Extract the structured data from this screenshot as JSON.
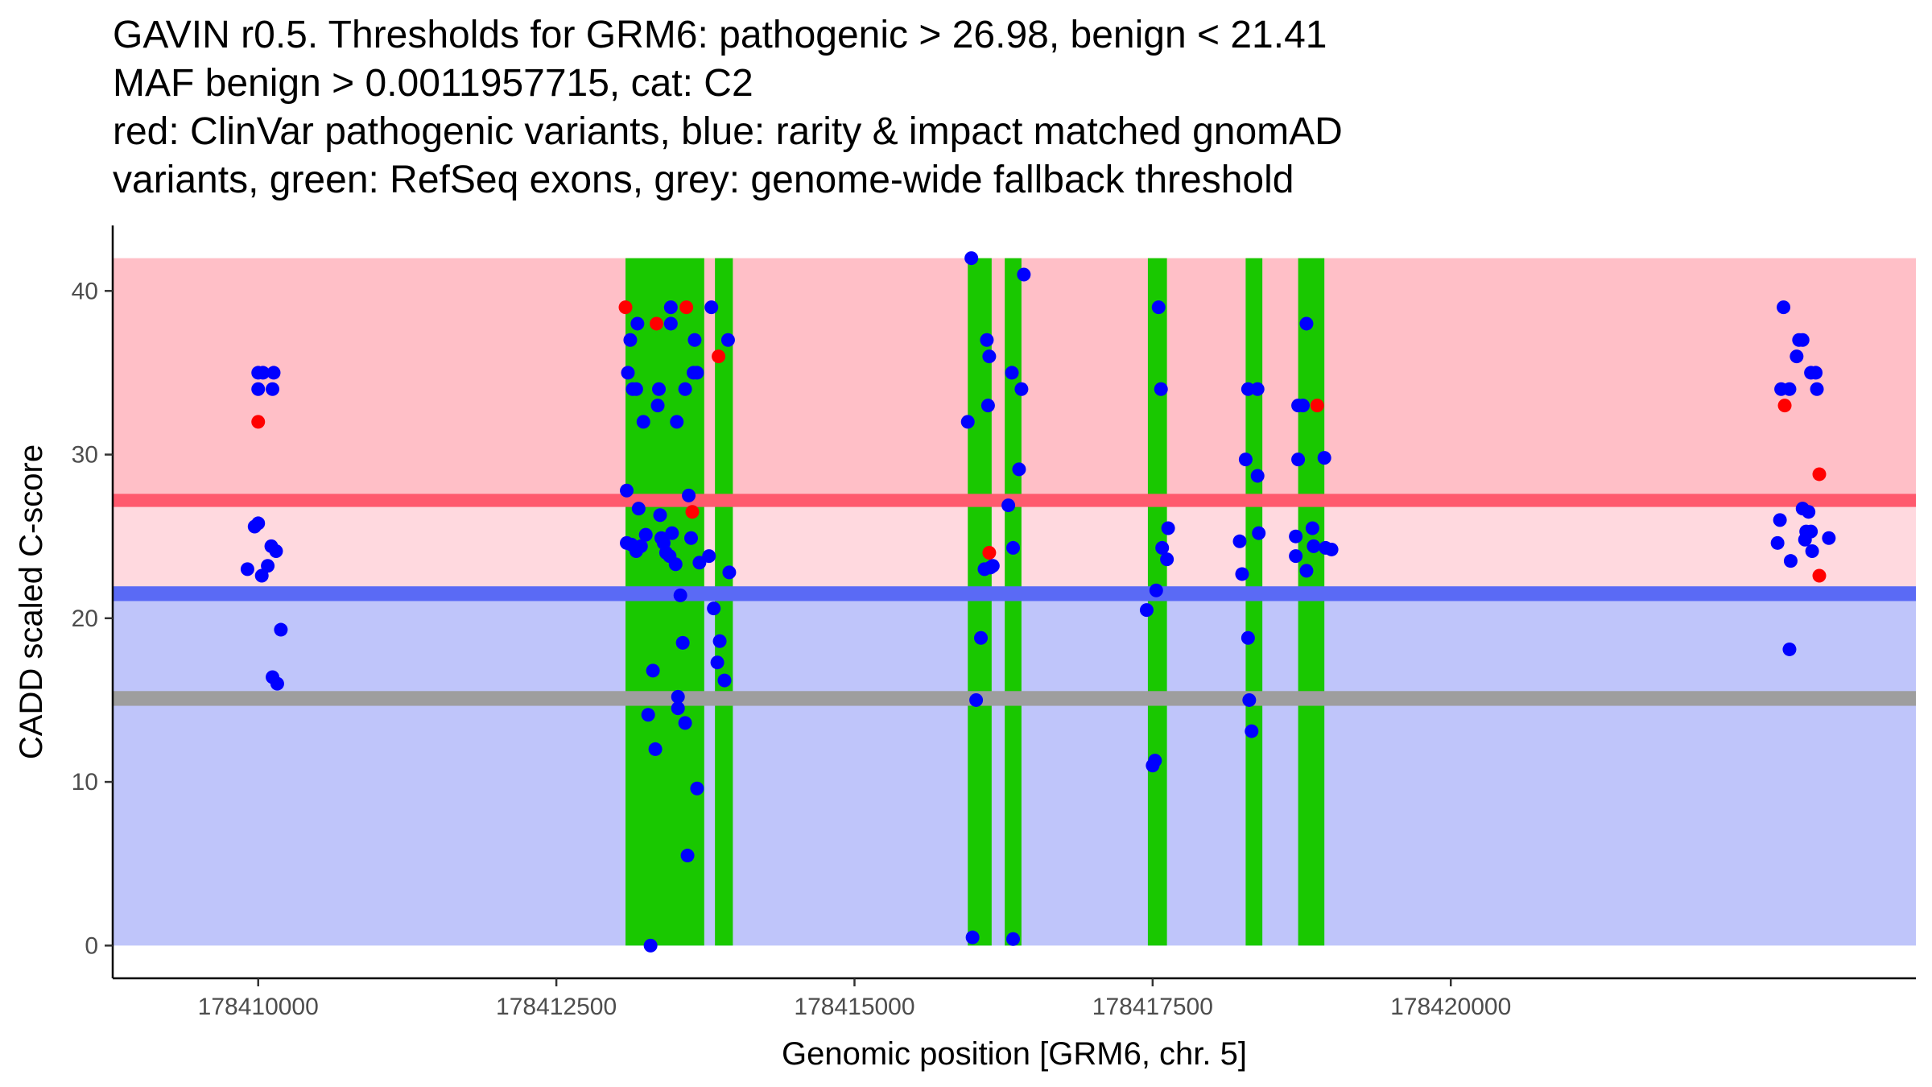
{
  "chart_data": {
    "type": "scatter",
    "title_lines": [
      "GAVIN r0.5. Thresholds for GRM6: pathogenic > 26.98, benign < 21.41",
      "MAF benign > 0.0011957715, cat: C2",
      "red: ClinVar pathogenic variants, blue: rarity & impact matched gnomAD",
      "variants, green: RefSeq exons, grey: genome-wide fallback threshold"
    ],
    "xlabel": "Genomic position [GRM6, chr. 5]",
    "ylabel": "CADD scaled C-score",
    "xlim": [
      178408780,
      178423900
    ],
    "ylim": [
      -2,
      44
    ],
    "x_ticks": [
      178410000,
      178412500,
      178415000,
      178417500,
      178420000
    ],
    "x_tick_labels": [
      "178410000",
      "178412500",
      "178415000",
      "178417500",
      "178420000"
    ],
    "y_ticks": [
      0,
      10,
      20,
      30,
      40
    ],
    "y_tick_labels": [
      "0",
      "10",
      "20",
      "30",
      "40"
    ],
    "thresholds": {
      "pathogenic": 26.98,
      "benign": 21.41,
      "fallback": 15.0,
      "maf_benign": 0.0011957715,
      "category": "C2"
    },
    "bands": [
      {
        "name": "pathogenic-zone",
        "from": 27.2,
        "to": 42,
        "color": "#ffbfc7"
      },
      {
        "name": "uncertain-zone",
        "from": 21.5,
        "to": 27.2,
        "color": "#ffd9df"
      },
      {
        "name": "benign-zone",
        "from": 0,
        "to": 21.5,
        "color": "#bfc5fa"
      }
    ],
    "threshold_lines": [
      {
        "name": "pathogenic-threshold",
        "y": 27.2,
        "color": "#ff5a6e",
        "thickness": 0.8
      },
      {
        "name": "benign-threshold",
        "y": 21.5,
        "color": "#5a6af5",
        "thickness": 0.9
      },
      {
        "name": "fallback-threshold",
        "y": 15.1,
        "color": "#9e9e9e",
        "thickness": 0.9
      }
    ],
    "exons": [
      {
        "start": 178413080,
        "end": 178413740
      },
      {
        "start": 178413830,
        "end": 178413980
      },
      {
        "start": 178415950,
        "end": 178416150
      },
      {
        "start": 178416260,
        "end": 178416400
      },
      {
        "start": 178417460,
        "end": 178417620
      },
      {
        "start": 178418280,
        "end": 178418420
      },
      {
        "start": 178418720,
        "end": 178418940
      }
    ],
    "series": [
      {
        "name": "ClinVar pathogenic variants",
        "color": "#ff0000",
        "points": [
          [
            178410000,
            32
          ],
          [
            178413080,
            39
          ],
          [
            178413340,
            38
          ],
          [
            178413590,
            39
          ],
          [
            178413860,
            36
          ],
          [
            178413640,
            26.5
          ],
          [
            178416130,
            24
          ],
          [
            178418880,
            33
          ],
          [
            178422800,
            33
          ],
          [
            178423090,
            28.8
          ],
          [
            178423090,
            22.6
          ]
        ]
      },
      {
        "name": "rarity & impact matched gnomAD variants",
        "color": "#0000ff",
        "points": [
          [
            178410000,
            35
          ],
          [
            178410040,
            35
          ],
          [
            178410130,
            35
          ],
          [
            178410000,
            34
          ],
          [
            178410120,
            34
          ],
          [
            178409970,
            25.6
          ],
          [
            178410000,
            25.8
          ],
          [
            178410110,
            24.4
          ],
          [
            178410150,
            24.1
          ],
          [
            178409910,
            23
          ],
          [
            178410080,
            23.2
          ],
          [
            178410030,
            22.6
          ],
          [
            178410190,
            19.3
          ],
          [
            178410120,
            16.4
          ],
          [
            178410160,
            16
          ],
          [
            178413090,
            27.8
          ],
          [
            178413100,
            35
          ],
          [
            178413120,
            37
          ],
          [
            178413140,
            34
          ],
          [
            178413170,
            34
          ],
          [
            178413180,
            38
          ],
          [
            178413090,
            24.6
          ],
          [
            178413130,
            24.5
          ],
          [
            178413170,
            24.1
          ],
          [
            178413190,
            26.7
          ],
          [
            178413210,
            24.4
          ],
          [
            178413230,
            32
          ],
          [
            178413250,
            25.1
          ],
          [
            178413270,
            14.1
          ],
          [
            178413310,
            16.8
          ],
          [
            178413330,
            12
          ],
          [
            178413290,
            0
          ],
          [
            178413360,
            34
          ],
          [
            178413350,
            33
          ],
          [
            178413370,
            26.3
          ],
          [
            178413380,
            24.9
          ],
          [
            178413400,
            24.6
          ],
          [
            178413420,
            24
          ],
          [
            178413450,
            23.8
          ],
          [
            178413470,
            25.2
          ],
          [
            178413460,
            38
          ],
          [
            178413460,
            39
          ],
          [
            178413510,
            32
          ],
          [
            178413500,
            23.3
          ],
          [
            178413520,
            14.5
          ],
          [
            178413520,
            15.2
          ],
          [
            178413540,
            21.4
          ],
          [
            178413560,
            18.5
          ],
          [
            178413580,
            34
          ],
          [
            178413580,
            13.6
          ],
          [
            178413600,
            5.5
          ],
          [
            178413610,
            27.5
          ],
          [
            178413630,
            24.9
          ],
          [
            178413650,
            35
          ],
          [
            178413660,
            37
          ],
          [
            178413680,
            35
          ],
          [
            178413680,
            9.6
          ],
          [
            178413700,
            23.4
          ],
          [
            178413780,
            23.8
          ],
          [
            178413800,
            39
          ],
          [
            178413820,
            20.6
          ],
          [
            178413850,
            17.3
          ],
          [
            178413870,
            18.6
          ],
          [
            178413910,
            16.2
          ],
          [
            178413940,
            37
          ],
          [
            178413950,
            22.8
          ],
          [
            178415950,
            32
          ],
          [
            178415980,
            42
          ],
          [
            178415990,
            0.5
          ],
          [
            178416020,
            15
          ],
          [
            178416060,
            18.8
          ],
          [
            178416090,
            23
          ],
          [
            178416110,
            37
          ],
          [
            178416120,
            33
          ],
          [
            178416130,
            36
          ],
          [
            178416140,
            23.1
          ],
          [
            178416160,
            23.2
          ],
          [
            178416290,
            26.9
          ],
          [
            178416320,
            35
          ],
          [
            178416330,
            24.3
          ],
          [
            178416330,
            0.4
          ],
          [
            178416380,
            29.1
          ],
          [
            178416400,
            34
          ],
          [
            178416420,
            41
          ],
          [
            178417450,
            20.5
          ],
          [
            178417500,
            11
          ],
          [
            178417520,
            11.3
          ],
          [
            178417530,
            21.7
          ],
          [
            178417550,
            39
          ],
          [
            178417570,
            34
          ],
          [
            178417580,
            24.3
          ],
          [
            178417620,
            23.6
          ],
          [
            178417630,
            25.5
          ],
          [
            178418230,
            24.7
          ],
          [
            178418250,
            22.7
          ],
          [
            178418280,
            29.7
          ],
          [
            178418300,
            34
          ],
          [
            178418300,
            18.8
          ],
          [
            178418310,
            15
          ],
          [
            178418330,
            13.1
          ],
          [
            178418380,
            34
          ],
          [
            178418380,
            28.7
          ],
          [
            178418390,
            25.2
          ],
          [
            178418700,
            25
          ],
          [
            178418700,
            23.8
          ],
          [
            178418720,
            33
          ],
          [
            178418720,
            29.7
          ],
          [
            178418760,
            33
          ],
          [
            178418790,
            38
          ],
          [
            178418790,
            22.9
          ],
          [
            178418840,
            25.5
          ],
          [
            178418850,
            24.4
          ],
          [
            178418940,
            29.8
          ],
          [
            178418950,
            24.3
          ],
          [
            178419000,
            24.2
          ],
          [
            178422740,
            24.6
          ],
          [
            178422760,
            26
          ],
          [
            178422770,
            34
          ],
          [
            178422790,
            39
          ],
          [
            178422840,
            34
          ],
          [
            178422840,
            18.1
          ],
          [
            178422850,
            23.5
          ],
          [
            178422900,
            36
          ],
          [
            178422920,
            37
          ],
          [
            178422950,
            37
          ],
          [
            178422950,
            26.7
          ],
          [
            178422970,
            24.8
          ],
          [
            178422980,
            25.3
          ],
          [
            178423000,
            26.5
          ],
          [
            178423020,
            35
          ],
          [
            178423020,
            25.3
          ],
          [
            178423030,
            24.1
          ],
          [
            178423060,
            35
          ],
          [
            178423070,
            34
          ],
          [
            178423170,
            24.9
          ]
        ]
      }
    ]
  }
}
